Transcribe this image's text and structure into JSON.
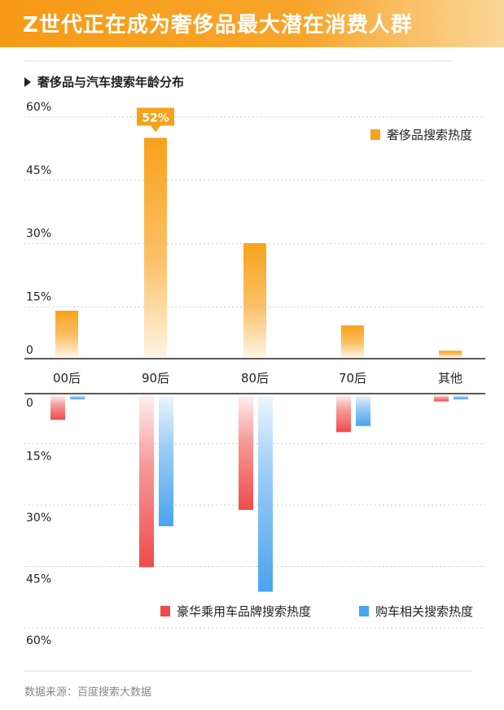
{
  "header": {
    "title": "Z世代正在成为奢侈品最大潜在消费人群"
  },
  "subtitle": "奢侈品与汽车搜索年龄分布",
  "source": "数据来源：百度搜索大数据",
  "colors": {
    "banner": "#f79a16",
    "luxury": "#f7a21b",
    "car_brand": "#ef4b4b",
    "car_search": "#4aa3ef"
  },
  "chart_data": {
    "type": "bar",
    "categories": [
      "00后",
      "90后",
      "80后",
      "70后",
      "其他"
    ],
    "upper": {
      "ylim": [
        0,
        60
      ],
      "yticks": [
        "0",
        "15%",
        "30%",
        "45%",
        "60%"
      ],
      "series": [
        {
          "name": "奢侈品搜索热度",
          "values": [
            11,
            52,
            27,
            7.5,
            1.5
          ]
        }
      ],
      "annotation": "52%"
    },
    "lower": {
      "ylim": [
        0,
        60
      ],
      "inverted": true,
      "yticks": [
        "0",
        "15%",
        "30%",
        "45%",
        "60%"
      ],
      "series": [
        {
          "name": "豪华乘用车品牌搜索热度",
          "values": [
            6,
            42,
            28,
            9,
            1.5
          ]
        },
        {
          "name": "购车相关搜索热度",
          "values": [
            1,
            32,
            48,
            7.5,
            1
          ]
        }
      ]
    },
    "grid": true
  }
}
